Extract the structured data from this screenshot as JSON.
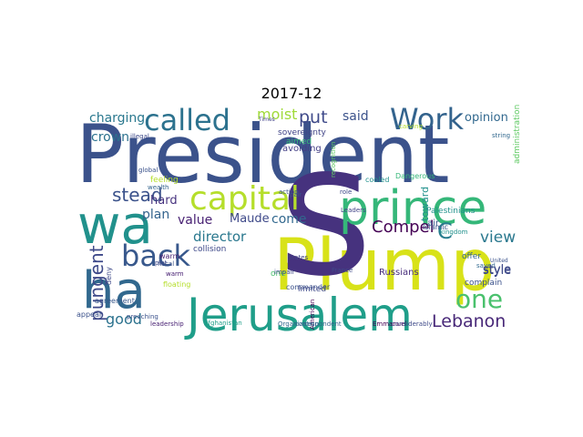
{
  "chart_data": {
    "type": "wordcloud",
    "title": "2017-12",
    "words": [
      {
        "text": "President",
        "color": "#3b528b"
      },
      {
        "text": "Plump",
        "color": "#d8e219"
      },
      {
        "text": "s",
        "color": "#46327e"
      },
      {
        "text": "wa",
        "color": "#21918c"
      },
      {
        "text": "ha",
        "color": "#31688e"
      },
      {
        "text": "Jerusalem",
        "color": "#1f9e89"
      },
      {
        "text": "prince",
        "color": "#35b779"
      },
      {
        "text": "capital",
        "color": "#b5de2b"
      },
      {
        "text": "called",
        "color": "#2c728e"
      },
      {
        "text": "Work",
        "color": "#33638d"
      },
      {
        "text": "back",
        "color": "#38588c"
      },
      {
        "text": "one",
        "color": "#4ac16d"
      },
      {
        "text": "Lebanon",
        "color": "#482878"
      },
      {
        "text": "pungent",
        "color": "#3e4989"
      },
      {
        "text": "view",
        "color": "#2a788e"
      },
      {
        "text": "Compel",
        "color": "#440154"
      },
      {
        "text": "C",
        "color": "#287d8e"
      },
      {
        "text": "stead",
        "color": "#3b528b"
      },
      {
        "text": "good",
        "color": "#2c728e"
      },
      {
        "text": "value",
        "color": "#482173"
      },
      {
        "text": "style",
        "color": "#3e4a89"
      },
      {
        "text": "put",
        "color": "#3e4989"
      },
      {
        "text": "moist",
        "color": "#a0da39"
      },
      {
        "text": "charging",
        "color": "#2a788e"
      },
      {
        "text": "crown",
        "color": "#2c728e"
      },
      {
        "text": "plan",
        "color": "#33638d"
      },
      {
        "text": "director",
        "color": "#2a788e"
      },
      {
        "text": "opinion",
        "color": "#31688e"
      },
      {
        "text": "said",
        "color": "#3b528b"
      },
      {
        "text": "come",
        "color": "#31688e"
      },
      {
        "text": "hard",
        "color": "#46327e"
      },
      {
        "text": "Maude",
        "color": "#3e4989"
      },
      {
        "text": "toward",
        "color": "#21918c"
      },
      {
        "text": "Russians",
        "color": "#472d7b"
      },
      {
        "text": "one",
        "color": "#4ac16d"
      },
      {
        "text": "commander",
        "color": "#3b528b"
      },
      {
        "text": "limited",
        "color": "#3e4989"
      },
      {
        "text": "American",
        "color": "#440154"
      },
      {
        "text": "agreement",
        "color": "#38588c"
      },
      {
        "text": "appear",
        "color": "#3b528b"
      },
      {
        "text": "leadership",
        "color": "#482173"
      },
      {
        "text": "Organization",
        "color": "#31688e"
      },
      {
        "text": "correspondent",
        "color": "#33638d"
      },
      {
        "text": "Emmanuel",
        "color": "#440154"
      },
      {
        "text": "considerably",
        "color": "#3e4989"
      },
      {
        "text": "Palestinians",
        "color": "#21918c"
      },
      {
        "text": "administration",
        "color": "#5ec962"
      },
      {
        "text": "complain",
        "color": "#3b528b"
      },
      {
        "text": "sovereignty",
        "color": "#414487"
      },
      {
        "text": "avoiding",
        "color": "#433e85"
      },
      {
        "text": "aimed",
        "color": "#35b779"
      },
      {
        "text": "collision",
        "color": "#3e4989"
      },
      {
        "text": "feeling",
        "color": "#b5de2b"
      },
      {
        "text": "Islamic",
        "color": "#3b528b"
      },
      {
        "text": "kingdom",
        "color": "#21918c"
      },
      {
        "text": "air",
        "color": "#38588c"
      },
      {
        "text": "offer",
        "color": "#33638d"
      },
      {
        "text": "saved",
        "color": "#31688e"
      },
      {
        "text": "France",
        "color": "#3e4989"
      },
      {
        "text": "impair",
        "color": "#3e4989"
      },
      {
        "text": "States",
        "color": "#414487"
      },
      {
        "text": "warm",
        "color": "#482173"
      },
      {
        "text": "fiscal",
        "color": "#3b528b"
      },
      {
        "text": "deny",
        "color": "#3e4989"
      },
      {
        "text": "floating",
        "color": "#b5de2b"
      },
      {
        "text": "Afghanistan",
        "color": "#1f9e89"
      },
      {
        "text": "Times",
        "color": "#414487"
      },
      {
        "text": "global",
        "color": "#3b528b"
      },
      {
        "text": "wealth",
        "color": "#33638d"
      },
      {
        "text": "plot",
        "color": "#3e4989"
      },
      {
        "text": "Leaders",
        "color": "#414487"
      },
      {
        "text": "role",
        "color": "#3e4989"
      },
      {
        "text": "pair",
        "color": "#3b528b"
      },
      {
        "text": "Dangerous",
        "color": "#35b779"
      },
      {
        "text": "cooled",
        "color": "#21918c"
      },
      {
        "text": "action",
        "color": "#3b528b"
      },
      {
        "text": "carving",
        "color": "#b5de2b"
      },
      {
        "text": "recognition",
        "color": "#5ec962"
      },
      {
        "text": "string",
        "color": "#31688e"
      },
      {
        "text": "United",
        "color": "#3b528b"
      },
      {
        "text": "preaching",
        "color": "#3b528b"
      },
      {
        "text": "illegal",
        "color": "#3e4989"
      },
      {
        "text": "warm",
        "color": "#482173"
      },
      {
        "text": "style",
        "color": "#3e4a89"
      }
    ]
  }
}
